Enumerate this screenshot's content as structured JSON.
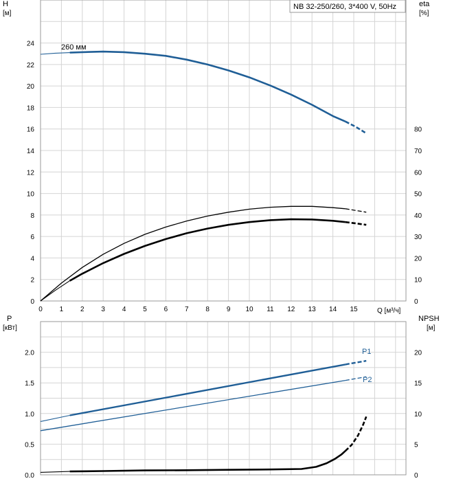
{
  "chart_data": [
    {
      "type": "line",
      "title": "NB 32-250/260, 3*400 V, 50Hz",
      "curve_label": "260 мм",
      "y_left_label": [
        "H",
        "[м]"
      ],
      "y_right_label": [
        "eta",
        "[%]"
      ],
      "x_label": "Q [м³/ч]",
      "x_ticks": [
        "0",
        "1",
        "2",
        "3",
        "4",
        "5",
        "6",
        "7",
        "8",
        "9",
        "10",
        "11",
        "12",
        "13",
        "14",
        "15"
      ],
      "y_left_ticks": [
        "0",
        "2",
        "4",
        "6",
        "8",
        "10",
        "12",
        "14",
        "16",
        "18",
        "20",
        "22",
        "24"
      ],
      "y_right_ticks": [
        "0",
        "10",
        "20",
        "30",
        "40",
        "50",
        "60",
        "70",
        "80"
      ],
      "xlim": [
        0,
        17.5
      ],
      "ylim_left": [
        0,
        28
      ],
      "ylim_right": [
        0,
        140
      ],
      "grid": true,
      "series": [
        {
          "id": "head",
          "axis": "left",
          "color": "#1f5e96",
          "width": 2.6,
          "x": [
            1.4,
            2,
            3,
            4,
            5,
            6,
            7,
            8,
            9,
            10,
            11,
            12,
            13,
            14,
            14.6
          ],
          "y": [
            23.1,
            23.15,
            23.2,
            23.15,
            23.0,
            22.8,
            22.45,
            22.0,
            21.45,
            20.8,
            20.05,
            19.2,
            18.25,
            17.2,
            16.7
          ],
          "x_thin_start": [
            0,
            0.7,
            1.4
          ],
          "y_thin_start": [
            22.95,
            23.05,
            23.1
          ],
          "x_dash": [
            14.6,
            15.1,
            15.6
          ],
          "y_dash": [
            16.7,
            16.2,
            15.6
          ]
        },
        {
          "id": "eta-1",
          "axis": "right",
          "color": "#000000",
          "width": 1.3,
          "x": [
            0,
            1,
            2,
            3,
            4,
            5,
            6,
            7,
            8,
            9,
            10,
            11,
            12,
            13,
            14,
            14.6
          ],
          "y": [
            0,
            8.3,
            15.6,
            21.7,
            26.8,
            31.0,
            34.4,
            37.2,
            39.5,
            41.3,
            42.7,
            43.6,
            44.0,
            44.0,
            43.4,
            42.9
          ],
          "x_dash": [
            14.6,
            15.1,
            15.6
          ],
          "y_dash": [
            42.9,
            42.1,
            41.3
          ]
        },
        {
          "id": "eta-2",
          "axis": "right",
          "color": "#000000",
          "width": 2.6,
          "x": [
            1.4,
            2,
            3,
            4,
            5,
            6,
            7,
            8,
            9,
            10,
            11,
            12,
            13,
            14,
            14.6
          ],
          "y": [
            9.4,
            12.7,
            17.6,
            21.9,
            25.6,
            28.8,
            31.5,
            33.7,
            35.4,
            36.7,
            37.6,
            38.0,
            37.9,
            37.3,
            36.7
          ],
          "x_thin_start": [
            0,
            0.7,
            1.4
          ],
          "y_thin_start": [
            0,
            4.9,
            9.4
          ],
          "x_dash": [
            14.6,
            15.1,
            15.6
          ],
          "y_dash": [
            36.7,
            36.1,
            35.4
          ]
        }
      ]
    },
    {
      "type": "line",
      "y_left_label": [
        "P",
        "[кВт]"
      ],
      "y_right_label": [
        "NPSH",
        "[м]"
      ],
      "y_left_ticks": [
        "0.0",
        "0.5",
        "1.0",
        "1.5",
        "2.0"
      ],
      "y_right_ticks": [
        "0",
        "5",
        "10",
        "15",
        "20"
      ],
      "ylim_left": [
        0,
        2.5
      ],
      "ylim_right": [
        0,
        25
      ],
      "grid": true,
      "series": [
        {
          "id": "P1",
          "name": "P1",
          "axis": "left",
          "color": "#1f5e96",
          "width": 2.4,
          "x": [
            1.4,
            14.6
          ],
          "y": [
            0.97,
            1.8
          ],
          "x_thin_start": [
            0,
            1.4
          ],
          "y_thin_start": [
            0.87,
            0.97
          ],
          "x_dash": [
            14.6,
            15.6
          ],
          "y_dash": [
            1.8,
            1.86
          ]
        },
        {
          "id": "P2",
          "name": "P2",
          "axis": "left",
          "color": "#1f5e96",
          "width": 1.3,
          "x": [
            0,
            14.6
          ],
          "y": [
            0.72,
            1.54
          ],
          "x_dash": [
            14.6,
            15.6
          ],
          "y_dash": [
            1.54,
            1.6
          ]
        },
        {
          "id": "NPSH",
          "axis": "right",
          "color": "#000000",
          "width": 2.6,
          "x": [
            1.4,
            3,
            5,
            7,
            9,
            11,
            12.5,
            13.2,
            13.7,
            14.1,
            14.4,
            14.6
          ],
          "y": [
            0.55,
            0.62,
            0.72,
            0.75,
            0.82,
            0.88,
            0.95,
            1.3,
            1.9,
            2.6,
            3.3,
            3.9
          ],
          "x_thin_start": [
            0,
            1.4
          ],
          "y_thin_start": [
            0.4,
            0.55
          ],
          "x_dash": [
            14.6,
            14.9,
            15.2,
            15.45,
            15.6
          ],
          "y_dash": [
            3.9,
            4.9,
            6.4,
            8.2,
            9.5
          ]
        }
      ]
    }
  ]
}
